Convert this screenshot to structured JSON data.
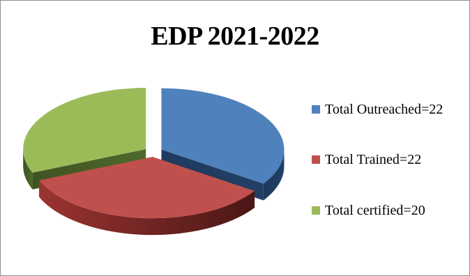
{
  "chart_data": {
    "type": "pie",
    "title": "EDP 2021-2022",
    "categories": [
      "Total Outreached=22",
      "Total Trained=22",
      "Total certified=20"
    ],
    "values": [
      22,
      22,
      20
    ],
    "colors": [
      "#4f81bd",
      "#c0504d",
      "#9bbb59"
    ],
    "legend_position": "right",
    "exploded": true,
    "three_d": true
  }
}
